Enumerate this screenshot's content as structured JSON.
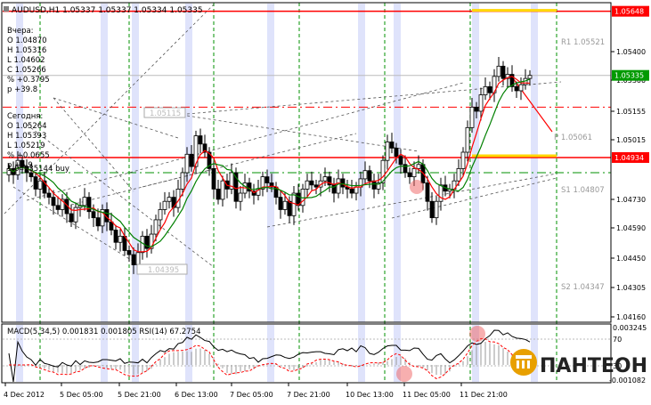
{
  "header": {
    "symbol_line": "AUDUSD,H1  1.05337 1.05337 1.05334 1.05335"
  },
  "info_yesterday": {
    "title": "Вчера:",
    "lines": [
      "O 1.04870",
      "H 1.05316",
      "L 1.04602",
      "C 1.05266",
      "% +0.3795",
      "p +39.8"
    ]
  },
  "info_today": {
    "title": "Сегодня:",
    "lines": [
      "O 1.05264",
      "H 1.05393",
      "L 1.05219",
      "% +0.0655",
      "p +5.9"
    ]
  },
  "buy_label": "1.04935144 buy",
  "price_box_labels": {
    "box1": "1.05115",
    "box2": "1.04395"
  },
  "pivot_labels": {
    "r1": "R1 1.05521",
    "p": "P 1.05061",
    "s1": "S1 1.04807",
    "s2": "S2 1.04347"
  },
  "price_axis": {
    "ticks": [
      "1.05400",
      "1.05300",
      "1.05155",
      "1.05015",
      "1.04730",
      "1.04590",
      "1.04450",
      "1.04305",
      "1.04160"
    ],
    "marked": [
      {
        "label": "1.05648",
        "color": "#ff0000"
      },
      {
        "label": "1.05335",
        "color": "#009a00"
      },
      {
        "label": "1.04934",
        "color": "#ff0000"
      }
    ]
  },
  "time_axis": [
    "4 Dec 2012",
    "5 Dec 05:00",
    "5 Dec 21:00",
    "6 Dec 13:00",
    "7 Dec 05:00",
    "7 Dec 21:00",
    "10 Dec 13:00",
    "11 Dec 05:00",
    "11 Dec 21:00"
  ],
  "indicator_header": "MACD(5,34,5) 0.001831 0.001805  RSI(14) 67.2754",
  "indicator_axis": {
    "top": "0.003245",
    "level70": "70",
    "level30": "30",
    "bottom": "-0.001082"
  },
  "logo_text": "ПАНТЕОН",
  "colors": {
    "bull": "#ffffff",
    "bear": "#000000",
    "ma_fast": "#ff0000",
    "ma_slow": "#008000",
    "level_red": "#ff0000",
    "grid_green": "#009000",
    "session_band": "#dfe3fb",
    "yellow": "#ffd700"
  },
  "chart_data": {
    "type": "candlestick",
    "symbol": "AUDUSD",
    "timeframe": "H1",
    "ylim": [
      1.0413,
      1.0569
    ],
    "levels": {
      "resistance_red": 1.05648,
      "support_red": 1.04934,
      "dash_red_upper": 1.0518,
      "dash_green_lower": 1.0486,
      "current_price": 1.05335
    },
    "closes": [
      1.0488,
      1.0485,
      1.0492,
      1.0489,
      1.0486,
      1.0484,
      1.0478,
      1.0482,
      1.0476,
      1.0474,
      1.047,
      1.0468,
      1.0473,
      1.0466,
      1.0462,
      1.0469,
      1.047,
      1.0474,
      1.0467,
      1.0464,
      1.046,
      1.0468,
      1.0462,
      1.0458,
      1.0452,
      1.0455,
      1.0448,
      1.0446,
      1.0441,
      1.0447,
      1.0455,
      1.0449,
      1.0456,
      1.0463,
      1.0468,
      1.0472,
      1.0474,
      1.0469,
      1.0478,
      1.0486,
      1.0495,
      1.0489,
      1.0504,
      1.05,
      1.0496,
      1.0488,
      1.0478,
      1.0473,
      1.0482,
      1.0478,
      1.0486,
      1.0472,
      1.0476,
      1.0481,
      1.0477,
      1.0475,
      1.0478,
      1.0484,
      1.0481,
      1.0479,
      1.0474,
      1.0468,
      1.0472,
      1.0465,
      1.0476,
      1.047,
      1.0478,
      1.0482,
      1.048,
      1.0479,
      1.0482,
      1.0484,
      1.048,
      1.0476,
      1.0483,
      1.0479,
      1.0478,
      1.0476,
      1.0479,
      1.0483,
      1.0487,
      1.0482,
      1.0478,
      1.0481,
      1.0492,
      1.0501,
      1.0498,
      1.0494,
      1.049,
      1.0486,
      1.0484,
      1.0488,
      1.049,
      1.0481,
      1.0472,
      1.0464,
      1.0472,
      1.048,
      1.0477,
      1.0478,
      1.0482,
      1.0488,
      1.0496,
      1.0508,
      1.0518,
      1.0516,
      1.0524,
      1.0528,
      1.0525,
      1.0533,
      1.0538,
      1.0532,
      1.0534,
      1.0528,
      1.0526,
      1.0529,
      1.0532,
      1.05335
    ]
  }
}
